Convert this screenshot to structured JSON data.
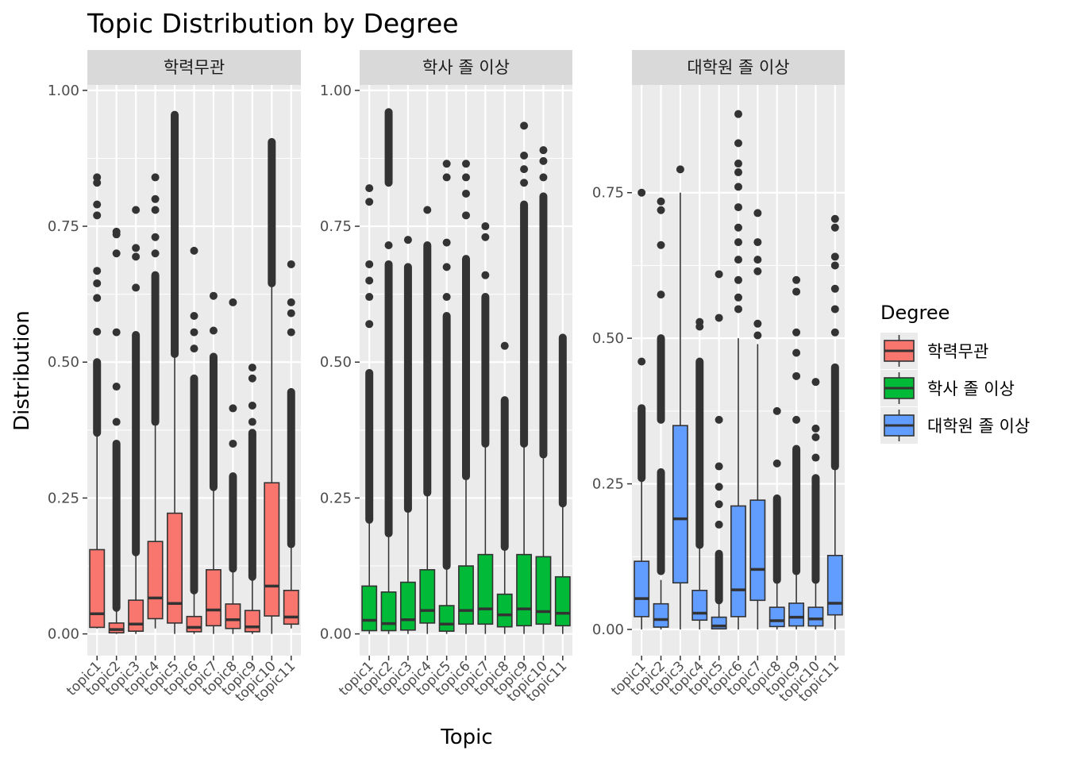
{
  "chart_data": {
    "type": "box",
    "title": "Topic Distribution by Degree",
    "xlabel": "Topic",
    "ylabel": "Distribution",
    "grid": true,
    "legend": {
      "title": "Degree",
      "placement": "right",
      "entries": [
        {
          "label": "학력무관",
          "color": "#F8766D"
        },
        {
          "label": "학사 졸 이상",
          "color": "#00BA38"
        },
        {
          "label": "대학원 졸 이상",
          "color": "#619CFF"
        }
      ]
    },
    "categories": [
      "topic1",
      "topic2",
      "topic3",
      "topic4",
      "topic5",
      "topic6",
      "topic7",
      "topic8",
      "topic9",
      "topic10",
      "topic11"
    ],
    "panels": [
      {
        "name": "학력무관",
        "color": "#F8766D",
        "ylim": [
          -0.04,
          1.01
        ],
        "yticks": [
          0,
          0.25,
          0.5,
          0.75,
          1.0
        ],
        "ytick_labels": [
          "0.00",
          "0.25",
          "0.50",
          "0.75",
          "1.00"
        ],
        "boxes": [
          {
            "min": 0.01,
            "q1": 0.012,
            "median": 0.037,
            "q3": 0.155,
            "max": 0.37,
            "outliers": [
              [
                0.37,
                0.5
              ],
              0.556,
              0.618,
              0.645,
              0.668,
              0.77,
              0.79,
              0.83,
              0.84
            ]
          },
          {
            "min": 0.0,
            "q1": 0.002,
            "median": 0.008,
            "q3": 0.02,
            "max": 0.048,
            "outliers": [
              [
                0.048,
                0.35
              ],
              0.39,
              0.455,
              0.555,
              0.7,
              0.735,
              0.74
            ]
          },
          {
            "min": 0.0,
            "q1": 0.005,
            "median": 0.018,
            "q3": 0.062,
            "max": 0.15,
            "outliers": [
              [
                0.15,
                0.55
              ],
              0.637,
              0.694,
              0.71,
              0.78
            ]
          },
          {
            "min": 0.01,
            "q1": 0.028,
            "median": 0.066,
            "q3": 0.17,
            "max": 0.39,
            "outliers": [
              [
                0.39,
                0.66
              ],
              0.7,
              0.73,
              0.78,
              0.8,
              0.84
            ]
          },
          {
            "min": 0.0,
            "q1": 0.02,
            "median": 0.056,
            "q3": 0.222,
            "max": 0.515,
            "outliers": [
              [
                0.515,
                0.955
              ]
            ]
          },
          {
            "min": 0.0,
            "q1": 0.004,
            "median": 0.012,
            "q3": 0.032,
            "max": 0.08,
            "outliers": [
              [
                0.08,
                0.47
              ],
              0.525,
              0.555,
              0.585,
              0.705
            ]
          },
          {
            "min": 0.0,
            "q1": 0.015,
            "median": 0.044,
            "q3": 0.118,
            "max": 0.27,
            "outliers": [
              [
                0.27,
                0.51
              ],
              0.558,
              0.622
            ]
          },
          {
            "min": 0.0,
            "q1": 0.01,
            "median": 0.026,
            "q3": 0.055,
            "max": 0.12,
            "outliers": [
              [
                0.12,
                0.29
              ],
              0.35,
              0.415,
              0.61
            ]
          },
          {
            "min": 0.0,
            "q1": 0.004,
            "median": 0.013,
            "q3": 0.043,
            "max": 0.105,
            "outliers": [
              [
                0.105,
                0.37
              ],
              0.39,
              0.42,
              0.47,
              0.49
            ]
          },
          {
            "min": 0.0,
            "q1": 0.033,
            "median": 0.088,
            "q3": 0.278,
            "max": 0.645,
            "outliers": [
              [
                0.645,
                0.905
              ]
            ]
          },
          {
            "min": 0.01,
            "q1": 0.018,
            "median": 0.031,
            "q3": 0.08,
            "max": 0.165,
            "outliers": [
              [
                0.165,
                0.445
              ],
              0.555,
              0.59,
              0.61,
              0.68
            ]
          }
        ]
      },
      {
        "name": "학사 졸 이상",
        "color": "#00BA38",
        "ylim": [
          -0.04,
          1.01
        ],
        "yticks": [
          0,
          0.25,
          0.5,
          0.75,
          1.0
        ],
        "ytick_labels": [
          "0.00",
          "0.25",
          "0.50",
          "0.75",
          "1.00"
        ],
        "boxes": [
          {
            "min": 0.0,
            "q1": 0.006,
            "median": 0.025,
            "q3": 0.088,
            "max": 0.21,
            "outliers": [
              [
                0.21,
                0.48
              ],
              0.57,
              0.62,
              0.65,
              0.68,
              0.795,
              0.82
            ]
          },
          {
            "min": 0.0,
            "q1": 0.006,
            "median": 0.019,
            "q3": 0.077,
            "max": 0.185,
            "outliers": [
              [
                0.185,
                0.68
              ],
              0.715,
              [
                0.83,
                0.96
              ]
            ]
          },
          {
            "min": 0.0,
            "q1": 0.007,
            "median": 0.026,
            "q3": 0.095,
            "max": 0.23,
            "outliers": [
              [
                0.23,
                0.675
              ],
              0.725
            ]
          },
          {
            "min": 0.0,
            "q1": 0.02,
            "median": 0.043,
            "q3": 0.118,
            "max": 0.26,
            "outliers": [
              [
                0.26,
                0.715
              ],
              0.78
            ]
          },
          {
            "min": 0.0,
            "q1": 0.005,
            "median": 0.018,
            "q3": 0.052,
            "max": 0.125,
            "outliers": [
              [
                0.125,
                0.585
              ],
              0.62,
              0.675,
              0.72,
              0.84,
              0.865
            ]
          },
          {
            "min": 0.0,
            "q1": 0.018,
            "median": 0.043,
            "q3": 0.125,
            "max": 0.29,
            "outliers": [
              [
                0.29,
                0.69
              ],
              0.77,
              0.81,
              0.84,
              0.865
            ]
          },
          {
            "min": 0.0,
            "q1": 0.018,
            "median": 0.046,
            "q3": 0.146,
            "max": 0.35,
            "outliers": [
              [
                0.35,
                0.62
              ],
              0.66,
              0.73,
              0.75
            ]
          },
          {
            "min": 0.0,
            "q1": 0.013,
            "median": 0.035,
            "q3": 0.073,
            "max": 0.16,
            "outliers": [
              [
                0.16,
                0.43
              ],
              0.53
            ]
          },
          {
            "min": 0.0,
            "q1": 0.015,
            "median": 0.046,
            "q3": 0.146,
            "max": 0.35,
            "outliers": [
              [
                0.35,
                0.79
              ],
              0.83,
              0.855,
              0.88,
              0.935
            ]
          },
          {
            "min": 0.0,
            "q1": 0.018,
            "median": 0.041,
            "q3": 0.142,
            "max": 0.33,
            "outliers": [
              [
                0.33,
                0.805
              ],
              0.84,
              0.87,
              0.89
            ]
          },
          {
            "min": 0.0,
            "q1": 0.015,
            "median": 0.038,
            "q3": 0.105,
            "max": 0.24,
            "outliers": [
              [
                0.24,
                0.545
              ]
            ]
          }
        ]
      },
      {
        "name": "대학원 졸 이상",
        "color": "#619CFF",
        "ylim": [
          -0.045,
          0.935
        ],
        "yticks": [
          0,
          0.25,
          0.5,
          0.75
        ],
        "ytick_labels": [
          "0.00",
          "0.25",
          "0.50",
          "0.75"
        ],
        "boxes": [
          {
            "min": 0.0,
            "q1": 0.022,
            "median": 0.053,
            "q3": 0.117,
            "max": 0.26,
            "outliers": [
              [
                0.26,
                0.38
              ],
              0.46,
              0.75
            ]
          },
          {
            "min": 0.0,
            "q1": 0.004,
            "median": 0.017,
            "q3": 0.044,
            "max": 0.085,
            "outliers": [
              [
                0.1,
                0.27
              ],
              [
                0.36,
                0.5
              ],
              0.575,
              0.66,
              0.72,
              0.735
            ]
          },
          {
            "min": 0.0,
            "q1": 0.08,
            "median": 0.19,
            "q3": 0.35,
            "max": 0.75,
            "outliers": [
              0.79
            ]
          },
          {
            "min": 0.0,
            "q1": 0.016,
            "median": 0.028,
            "q3": 0.067,
            "max": 0.145,
            "outliers": [
              [
                0.145,
                0.46
              ],
              0.52,
              0.528
            ]
          },
          {
            "min": 0.0,
            "q1": 0.001,
            "median": 0.006,
            "q3": 0.021,
            "max": 0.05,
            "outliers": [
              [
                0.05,
                0.13
              ],
              0.18,
              0.215,
              0.245,
              0.28,
              0.36,
              0.535,
              0.61
            ]
          },
          {
            "min": 0.0,
            "q1": 0.022,
            "median": 0.068,
            "q3": 0.212,
            "max": 0.5,
            "outliers": [
              0.55,
              0.57,
              0.6,
              0.635,
              0.665,
              0.69,
              0.725,
              0.76,
              0.785,
              0.8,
              0.835,
              0.885
            ]
          },
          {
            "min": 0.0,
            "q1": 0.05,
            "median": 0.103,
            "q3": 0.222,
            "max": 0.49,
            "outliers": [
              0.505,
              0.525,
              0.615,
              0.635,
              0.665,
              0.715
            ]
          },
          {
            "min": 0.0,
            "q1": 0.005,
            "median": 0.015,
            "q3": 0.038,
            "max": 0.085,
            "outliers": [
              [
                0.085,
                0.225
              ],
              0.285,
              0.375
            ]
          },
          {
            "min": 0.0,
            "q1": 0.006,
            "median": 0.021,
            "q3": 0.045,
            "max": 0.1,
            "outliers": [
              [
                0.1,
                0.31
              ],
              0.36,
              0.435,
              0.475,
              0.51,
              0.58,
              0.6
            ]
          },
          {
            "min": 0.0,
            "q1": 0.006,
            "median": 0.018,
            "q3": 0.038,
            "max": 0.085,
            "outliers": [
              [
                0.085,
                0.26
              ],
              0.295,
              0.33,
              0.345,
              0.425
            ]
          },
          {
            "min": 0.0,
            "q1": 0.025,
            "median": 0.045,
            "q3": 0.127,
            "max": 0.28,
            "outliers": [
              [
                0.28,
                0.45
              ],
              0.51,
              0.55,
              0.585,
              0.625,
              0.64,
              0.69,
              0.705
            ]
          }
        ]
      }
    ]
  }
}
